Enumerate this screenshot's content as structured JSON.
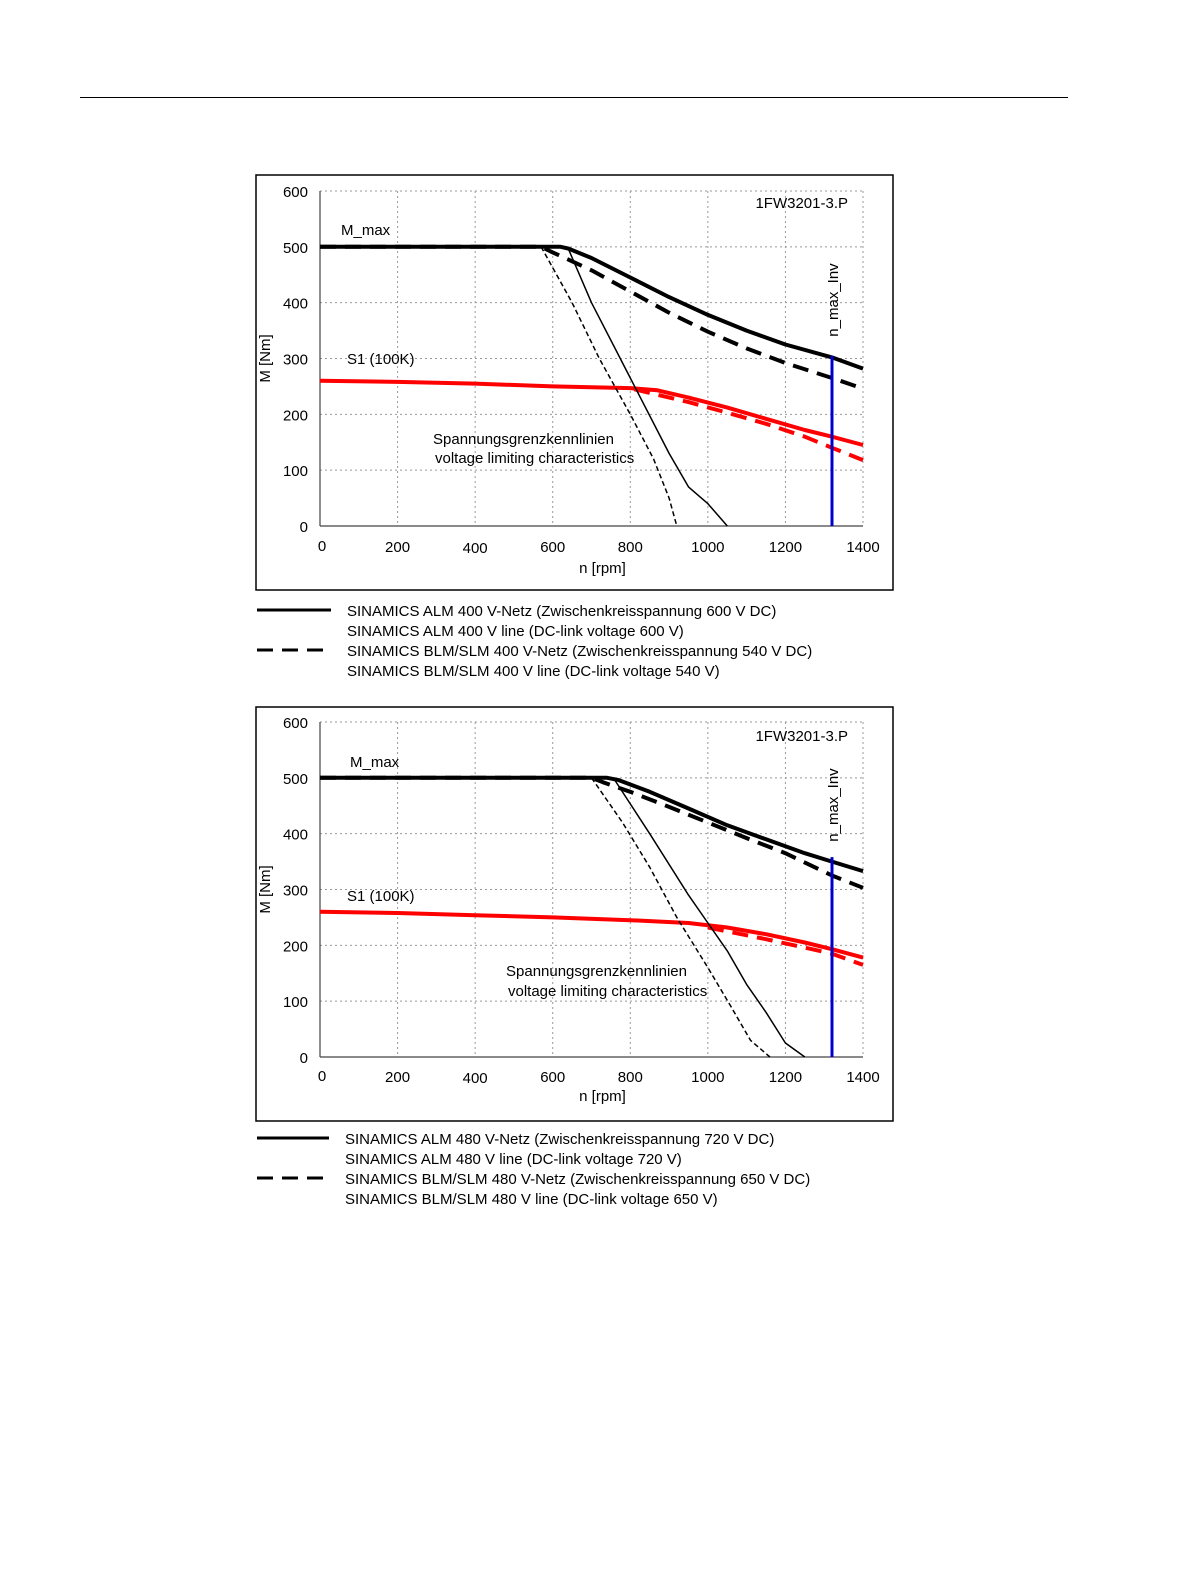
{
  "chart_data": [
    {
      "type": "line",
      "title": "1FW3201-3.P",
      "xlabel": "n [rpm]",
      "ylabel": "M [Nm]",
      "xlim": [
        0,
        1400
      ],
      "ylim": [
        0,
        600
      ],
      "x_ticks": [
        0,
        200,
        400,
        600,
        800,
        1000,
        1200,
        1400
      ],
      "y_ticks": [
        0,
        100,
        200,
        300,
        400,
        500,
        600
      ],
      "grid": true,
      "labels": {
        "m_max": "M_max",
        "s1": "S1 (100K)",
        "volt_de": "Spannungsgrenzkennlinien",
        "volt_en": "voltage limiting characteristics",
        "n_max": "n_max_Inv"
      },
      "n_max_inv": 1320,
      "series": [
        {
          "color": "#000000",
          "style": "solid",
          "width": 4,
          "x": [
            0,
            620,
            640,
            700,
            800,
            900,
            1000,
            1100,
            1200,
            1320,
            1400
          ],
          "y": [
            500,
            500,
            497,
            480,
            445,
            410,
            378,
            350,
            325,
            302,
            282
          ]
        },
        {
          "color": "#000000",
          "style": "dashed",
          "width": 4,
          "x": [
            0,
            570,
            600,
            700,
            800,
            900,
            1000,
            1100,
            1200,
            1320,
            1400
          ],
          "y": [
            500,
            500,
            490,
            458,
            420,
            382,
            348,
            318,
            292,
            265,
            246
          ]
        },
        {
          "color": "#ff0000",
          "style": "solid",
          "width": 4,
          "x": [
            0,
            200,
            400,
            600,
            800,
            870,
            950,
            1050,
            1150,
            1250,
            1320,
            1400
          ],
          "y": [
            260,
            258,
            255,
            250,
            247,
            243,
            230,
            212,
            192,
            172,
            160,
            145
          ]
        },
        {
          "color": "#ff0000",
          "style": "dashed",
          "width": 4,
          "x": [
            810,
            870,
            950,
            1050,
            1150,
            1250,
            1320,
            1400
          ],
          "y": [
            245,
            235,
            222,
            203,
            183,
            160,
            140,
            118
          ]
        },
        {
          "color": "#000000",
          "style": "solid",
          "width": 1.5,
          "x": [
            640,
            700,
            800,
            900,
            950,
            1000,
            1050
          ],
          "y": [
            497,
            400,
            265,
            130,
            70,
            40,
            0
          ]
        },
        {
          "color": "#000000",
          "style": "dashed",
          "width": 1.5,
          "x": [
            570,
            650,
            720,
            800,
            860,
            900,
            920
          ],
          "y": [
            500,
            400,
            300,
            200,
            120,
            50,
            0
          ]
        },
        {
          "color": "#0000cc",
          "style": "solid",
          "width": 3,
          "x": [
            1320,
            1320
          ],
          "y": [
            0,
            305
          ]
        }
      ],
      "legend": [
        {
          "style": "solid",
          "line1": "SINAMICS ALM  400 V-Netz (Zwischenkreisspannung 600 V DC)",
          "line2": "SINAMICS ALM  400 V line (DC-link voltage 600 V)"
        },
        {
          "style": "dashed",
          "line1": "SINAMICS BLM/SLM  400 V-Netz (Zwischenkreisspannung 540 V DC)",
          "line2": "SINAMICS BLM/SLM  400 V line (DC-link voltage 540 V)"
        }
      ]
    },
    {
      "type": "line",
      "title": "1FW3201-3.P",
      "xlabel": "n [rpm]",
      "ylabel": "M [Nm]",
      "xlim": [
        0,
        1400
      ],
      "ylim": [
        0,
        600
      ],
      "x_ticks": [
        0,
        200,
        400,
        600,
        800,
        1000,
        1200,
        1400
      ],
      "y_ticks": [
        0,
        100,
        200,
        300,
        400,
        500,
        600
      ],
      "grid": true,
      "labels": {
        "m_max": "M_max",
        "s1": "S1 (100K)",
        "volt_de": "Spannungsgrenzkennlinien",
        "volt_en": "voltage limiting characteristics",
        "n_max": "n_max_Inv"
      },
      "n_max_inv": 1320,
      "series": [
        {
          "color": "#000000",
          "style": "solid",
          "width": 4,
          "x": [
            0,
            740,
            770,
            850,
            950,
            1050,
            1150,
            1250,
            1320,
            1400
          ],
          "y": [
            500,
            500,
            496,
            475,
            445,
            415,
            390,
            365,
            350,
            333
          ]
        },
        {
          "color": "#000000",
          "style": "dashed",
          "width": 4,
          "x": [
            0,
            700,
            730,
            800,
            900,
            1000,
            1100,
            1200,
            1320,
            1400
          ],
          "y": [
            500,
            500,
            492,
            475,
            448,
            420,
            392,
            365,
            325,
            303
          ]
        },
        {
          "color": "#ff0000",
          "style": "solid",
          "width": 4,
          "x": [
            0,
            200,
            400,
            600,
            800,
            950,
            1050,
            1150,
            1250,
            1320,
            1400
          ],
          "y": [
            260,
            258,
            254,
            250,
            245,
            240,
            232,
            220,
            205,
            193,
            178
          ]
        },
        {
          "color": "#ff0000",
          "style": "dashed",
          "width": 4,
          "x": [
            1000,
            1050,
            1150,
            1250,
            1320,
            1400
          ],
          "y": [
            232,
            225,
            211,
            196,
            185,
            165
          ]
        },
        {
          "color": "#000000",
          "style": "solid",
          "width": 1.5,
          "x": [
            760,
            850,
            950,
            1000,
            1050,
            1100,
            1150,
            1200,
            1250
          ],
          "y": [
            496,
            400,
            290,
            240,
            190,
            130,
            80,
            25,
            0
          ]
        },
        {
          "color": "#000000",
          "style": "dashed",
          "width": 1.5,
          "x": [
            700,
            780,
            850,
            920,
            1000,
            1060,
            1110,
            1160
          ],
          "y": [
            500,
            420,
            340,
            250,
            160,
            90,
            30,
            0
          ]
        },
        {
          "color": "#0000cc",
          "style": "solid",
          "width": 3,
          "x": [
            1320,
            1320
          ],
          "y": [
            0,
            358
          ]
        }
      ],
      "legend": [
        {
          "style": "solid",
          "line1": "SINAMICS ALM  480 V-Netz (Zwischenkreisspannung 720 V DC)",
          "line2": "SINAMICS ALM  480 V line (DC-link voltage 720 V)"
        },
        {
          "style": "dashed",
          "line1": "SINAMICS BLM/SLM  480 V-Netz (Zwischenkreisspannung 650 V DC)",
          "line2": "SINAMICS BLM/SLM  480 V line (DC-link voltage 650 V)"
        }
      ]
    }
  ]
}
